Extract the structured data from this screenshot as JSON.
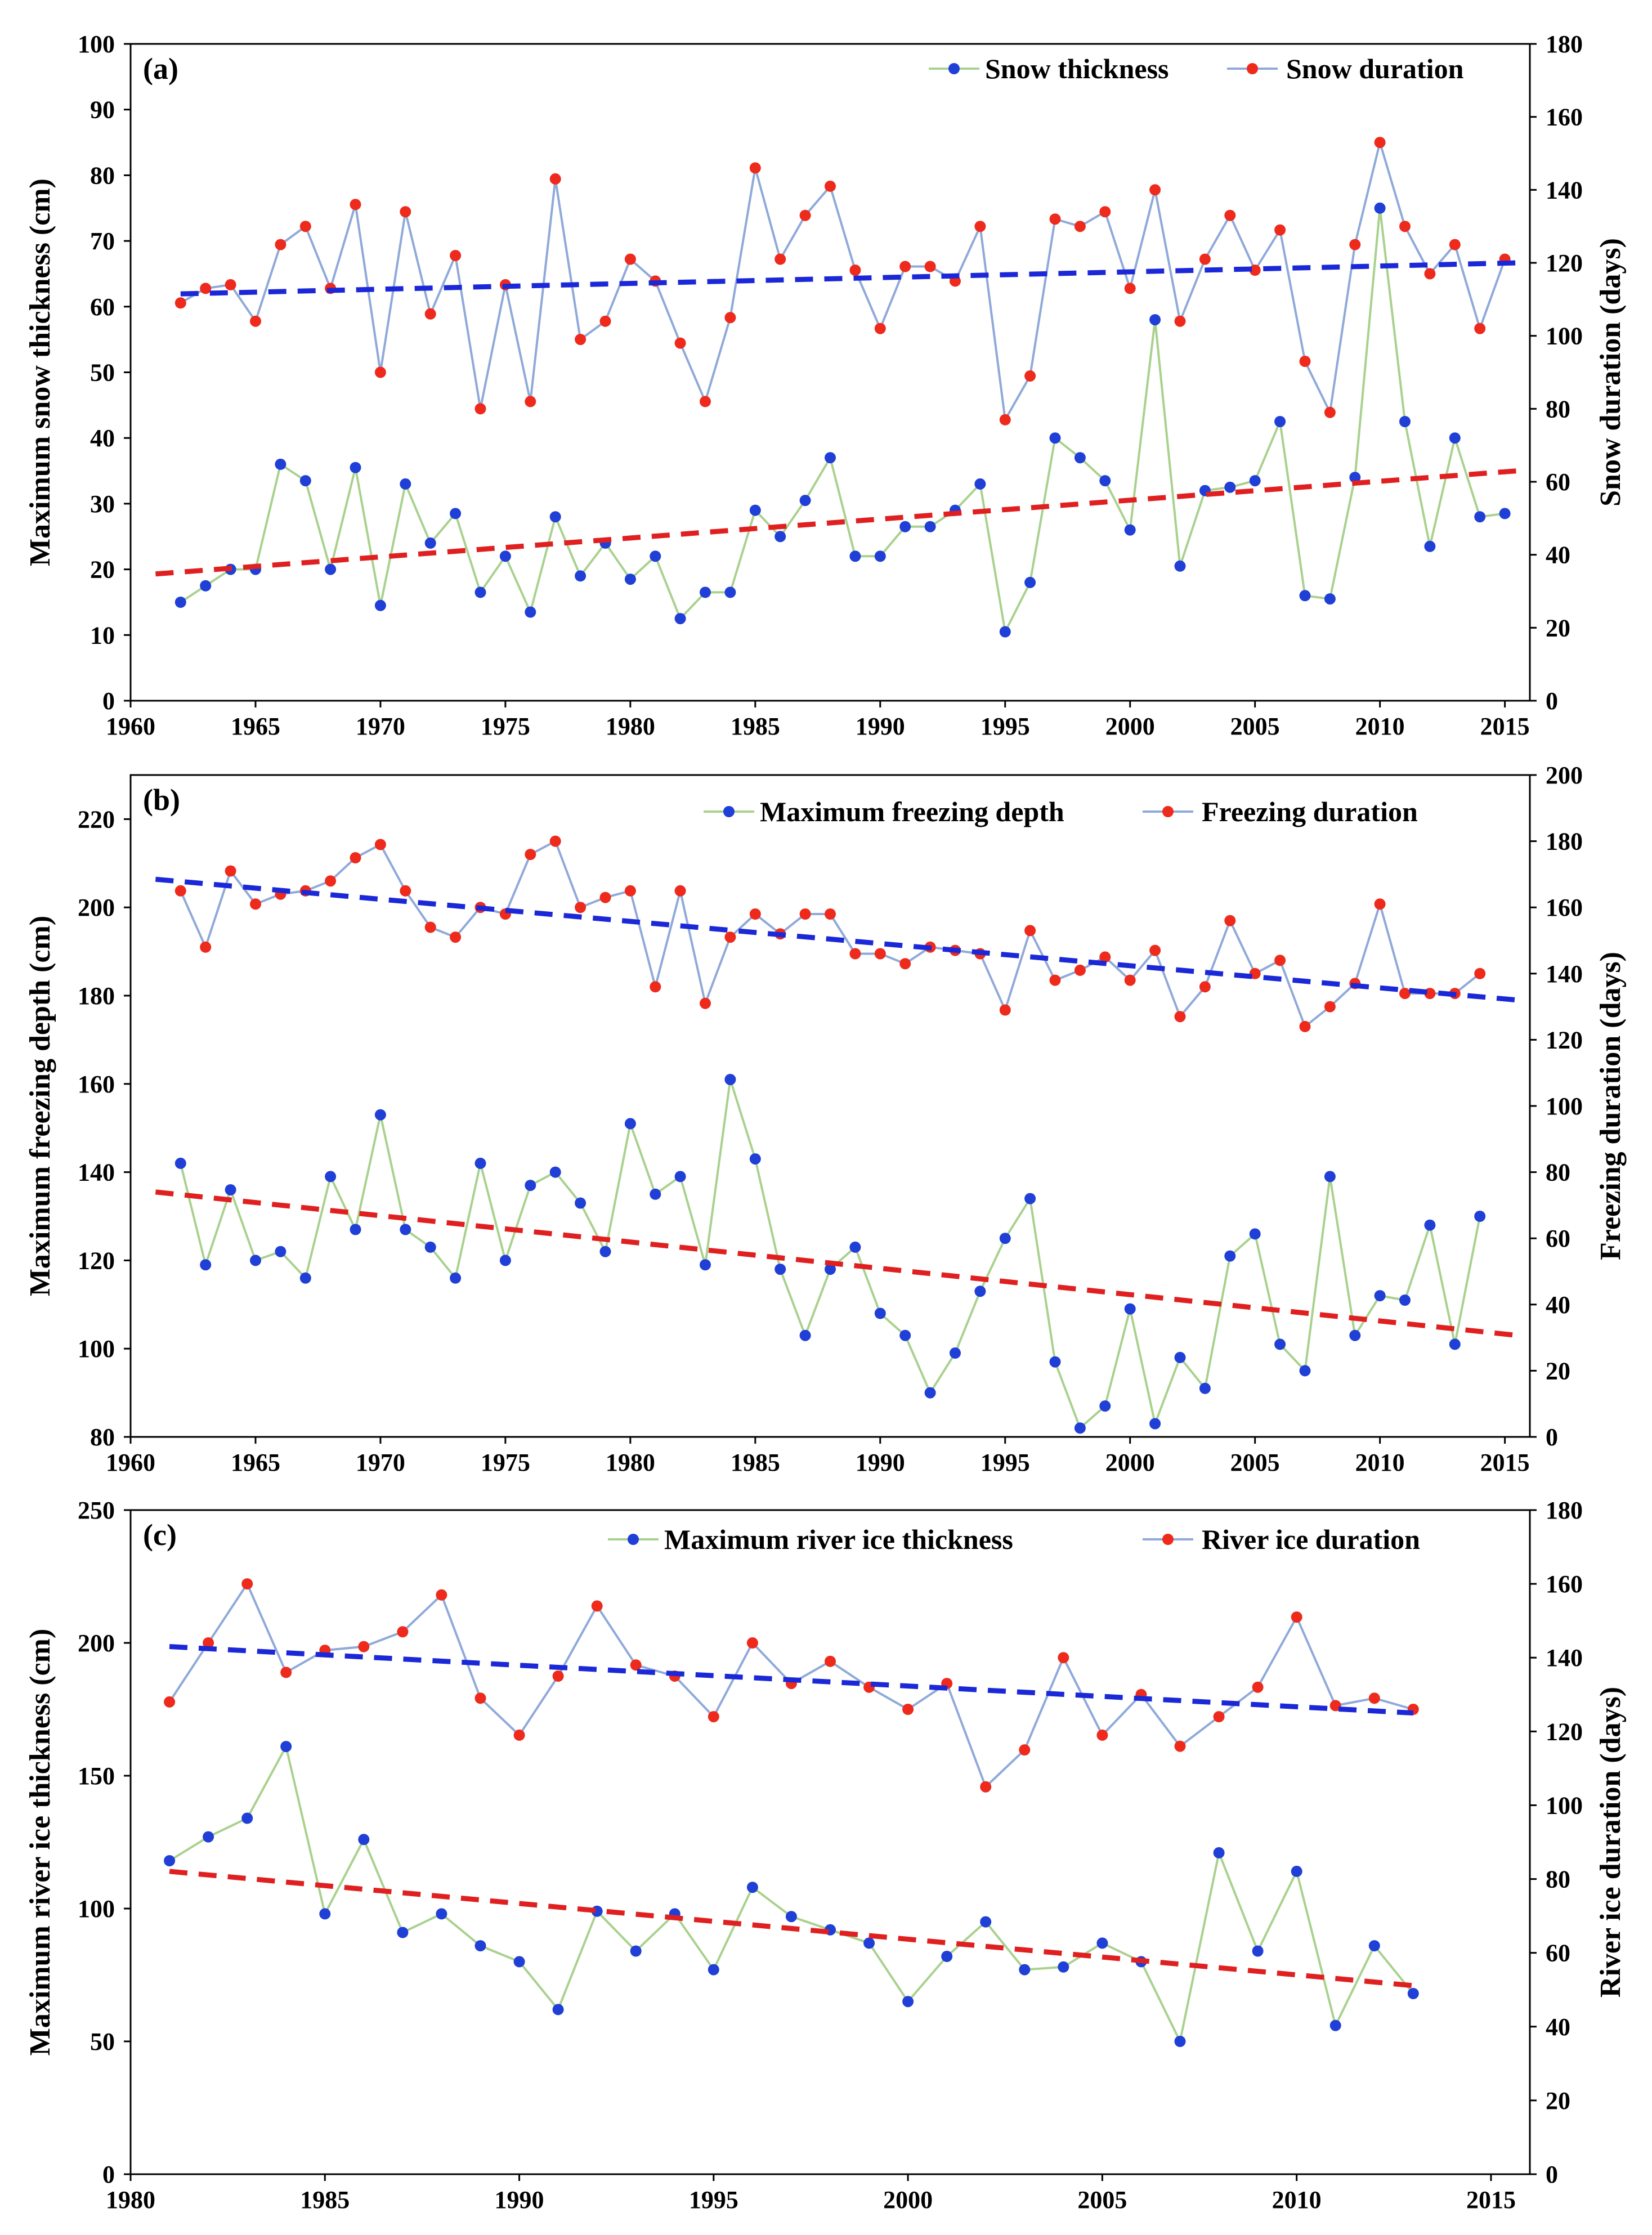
{
  "chart_data": [
    {
      "type": "line",
      "panel_label": "(a)",
      "x": [
        1962,
        1963,
        1964,
        1965,
        1966,
        1967,
        1968,
        1969,
        1970,
        1971,
        1972,
        1973,
        1974,
        1975,
        1976,
        1977,
        1978,
        1979,
        1980,
        1981,
        1982,
        1983,
        1984,
        1985,
        1986,
        1987,
        1988,
        1989,
        1990,
        1991,
        1992,
        1993,
        1994,
        1995,
        1996,
        1997,
        1998,
        1999,
        2000,
        2001,
        2002,
        2003,
        2004,
        2005,
        2006,
        2007,
        2008,
        2009,
        2010,
        2011,
        2012,
        2013,
        2014,
        2015
      ],
      "xlim": [
        1960,
        2016
      ],
      "xticks": [
        "1960",
        "1965",
        "1970",
        "1975",
        "1980",
        "1985",
        "1990",
        "1995",
        "2000",
        "2005",
        "2010",
        "2015"
      ],
      "ylabel": "Maximum snow thickness (cm)",
      "ylim": [
        0,
        100
      ],
      "yticks": [
        "0",
        "10",
        "20",
        "30",
        "40",
        "50",
        "60",
        "70",
        "80",
        "90",
        "100"
      ],
      "y2label": "Snow duration (days)",
      "y2lim": [
        0,
        180
      ],
      "y2ticks": [
        "0",
        "20",
        "40",
        "60",
        "80",
        "100",
        "120",
        "140",
        "160",
        "180"
      ],
      "series": [
        {
          "name": "Snow thickness",
          "axis": "left",
          "line_color": "#a9d18e",
          "marker_color": "#1f3fd6",
          "values": [
            15,
            17.5,
            20,
            20,
            36,
            33.5,
            20,
            35.5,
            14.5,
            33,
            24,
            28.5,
            16.5,
            22,
            13.5,
            28,
            19,
            24,
            18.5,
            22,
            12.5,
            16.5,
            16.5,
            29,
            25,
            30.5,
            37,
            22,
            22,
            26.5,
            26.5,
            29,
            33,
            10.5,
            18,
            40,
            37,
            33.5,
            26,
            58,
            20.5,
            32,
            32.5,
            33.5,
            42.5,
            16,
            15.5,
            34,
            75,
            42.5,
            23.5,
            40,
            28,
            28.5
          ],
          "trend": {
            "color": "#e02020",
            "from": [
              1961,
              19.3
            ],
            "to": [
              2015.5,
              35
            ]
          }
        },
        {
          "name": "Snow duration",
          "axis": "right",
          "line_color": "#8fa9d9",
          "marker_color": "#ee2a1c",
          "values": [
            109,
            113,
            114,
            104,
            125,
            130,
            113,
            136,
            90,
            134,
            106,
            122,
            80,
            114,
            82,
            143,
            99,
            104,
            121,
            115,
            98,
            82,
            105,
            146,
            121,
            133,
            141,
            118,
            102,
            119,
            119,
            115,
            130,
            77,
            89,
            132,
            130,
            134,
            113,
            140,
            104,
            121,
            133,
            118,
            129,
            93,
            79,
            125,
            153,
            130,
            117,
            125,
            102,
            121
          ],
          "trend": {
            "color": "#1b28d8",
            "from": [
              1962,
              111.5
            ],
            "to": [
              2015.5,
              120
            ]
          }
        }
      ]
    },
    {
      "type": "line",
      "panel_label": "(b)",
      "x": [
        1962,
        1963,
        1964,
        1965,
        1966,
        1967,
        1968,
        1969,
        1970,
        1971,
        1972,
        1973,
        1974,
        1975,
        1976,
        1977,
        1978,
        1979,
        1980,
        1981,
        1982,
        1983,
        1984,
        1985,
        1986,
        1987,
        1988,
        1989,
        1990,
        1991,
        1992,
        1993,
        1994,
        1995,
        1996,
        1997,
        1998,
        1999,
        2000,
        2001,
        2002,
        2003,
        2004,
        2005,
        2006,
        2007,
        2008,
        2009,
        2010,
        2011,
        2012,
        2013,
        2014
      ],
      "xlim": [
        1960,
        2016
      ],
      "xticks": [
        "1960",
        "1965",
        "1970",
        "1975",
        "1980",
        "1985",
        "1990",
        "1995",
        "2000",
        "2005",
        "2010",
        "2015"
      ],
      "ylabel": "Maximum freezing depth (cm)",
      "ylim": [
        80,
        230
      ],
      "yticks": [
        "80",
        "100",
        "120",
        "140",
        "160",
        "180",
        "200",
        "220"
      ],
      "y2label": "Freezing duration (days)",
      "y2lim": [
        0,
        200
      ],
      "y2ticks": [
        "0",
        "20",
        "40",
        "60",
        "80",
        "100",
        "120",
        "140",
        "160",
        "180",
        "200"
      ],
      "series": [
        {
          "name": "Maximum freezing depth",
          "axis": "left",
          "line_color": "#a9d18e",
          "marker_color": "#1f3fd6",
          "values": [
            142,
            119,
            136,
            120,
            122,
            116,
            139,
            127,
            153,
            127,
            123,
            116,
            142,
            120,
            137,
            140,
            133,
            122,
            151,
            135,
            139,
            119,
            161,
            143,
            118,
            103,
            118,
            123,
            108,
            103,
            90,
            99,
            113,
            125,
            134,
            97,
            82,
            87,
            109,
            83,
            98,
            91,
            121,
            126,
            101,
            95,
            139,
            103,
            112,
            111,
            128,
            101,
            130
          ],
          "trend": {
            "color": "#e02020",
            "from": [
              1961,
              135.5
            ],
            "to": [
              2015.5,
              103
            ]
          }
        },
        {
          "name": "Freezing duration",
          "axis": "right",
          "line_color": "#8fa9d9",
          "marker_color": "#ee2a1c",
          "values": [
            165,
            148,
            171,
            161,
            164,
            165,
            168,
            175,
            179,
            165,
            154,
            151,
            160,
            158,
            176,
            180,
            160,
            163,
            165,
            136,
            165,
            131,
            151,
            158,
            152,
            158,
            158,
            146,
            146,
            143,
            148,
            147,
            146,
            129,
            153,
            138,
            141,
            145,
            138,
            147,
            127,
            136,
            156,
            140,
            144,
            124,
            130,
            137,
            161,
            134,
            134,
            134,
            140
          ],
          "trend": {
            "color": "#1b28d8",
            "from": [
              1961,
              168.5
            ],
            "to": [
              2015.5,
              132
            ]
          }
        }
      ]
    },
    {
      "type": "line",
      "panel_label": "(c)",
      "x": [
        1981,
        1982,
        1983,
        1984,
        1985,
        1986,
        1987,
        1988,
        1989,
        1990,
        1991,
        1992,
        1993,
        1994,
        1995,
        1996,
        1997,
        1998,
        1999,
        2000,
        2001,
        2002,
        2003,
        2004,
        2005,
        2006,
        2007,
        2008,
        2009,
        2010,
        2011,
        2012,
        2013
      ],
      "xlim": [
        1980,
        2016
      ],
      "xticks": [
        "1980",
        "1985",
        "1990",
        "1995",
        "2000",
        "2005",
        "2010",
        "2015"
      ],
      "ylabel": "Maximum river ice thickness (cm)",
      "ylim": [
        0,
        250
      ],
      "yticks": [
        "0",
        "50",
        "100",
        "150",
        "200",
        "250"
      ],
      "y2label": "River ice duration (days)",
      "y2lim": [
        0,
        180
      ],
      "y2ticks": [
        "0",
        "20",
        "40",
        "60",
        "80",
        "100",
        "120",
        "140",
        "160",
        "180"
      ],
      "series": [
        {
          "name": "Maximum river ice thickness",
          "axis": "left",
          "line_color": "#a9d18e",
          "marker_color": "#1f3fd6",
          "values": [
            118,
            127,
            134,
            161,
            98,
            126,
            91,
            98,
            86,
            80,
            62,
            99,
            84,
            98,
            77,
            108,
            97,
            92,
            87,
            65,
            82,
            95,
            77,
            78,
            87,
            80,
            50,
            121,
            84,
            114,
            56,
            86,
            68
          ],
          "trend": {
            "color": "#e02020",
            "from": [
              1981,
              114
            ],
            "to": [
              2013,
              71
            ]
          }
        },
        {
          "name": "River ice duration",
          "axis": "right",
          "line_color": "#8fa9d9",
          "marker_color": "#ee2a1c",
          "values": [
            128,
            144,
            160,
            136,
            142,
            143,
            147,
            157,
            129,
            119,
            135,
            154,
            138,
            135,
            124,
            144,
            133,
            139,
            132,
            126,
            133,
            105,
            115,
            140,
            119,
            130,
            116,
            124,
            132,
            151,
            127,
            129,
            126
          ],
          "trend": {
            "color": "#1b28d8",
            "from": [
              1981,
              143
            ],
            "to": [
              2013,
              125
            ]
          }
        }
      ]
    }
  ]
}
